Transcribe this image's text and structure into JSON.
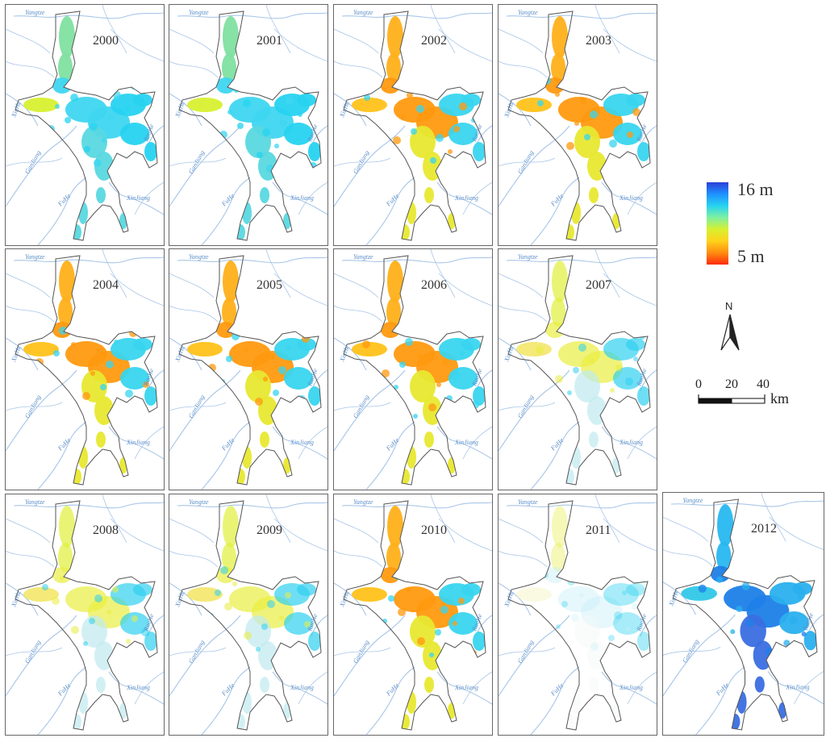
{
  "panels": [
    {
      "year": "2000",
      "cover": "mixed"
    },
    {
      "year": "2001",
      "cover": "mixed"
    },
    {
      "year": "2002",
      "cover": "shallow"
    },
    {
      "year": "2003",
      "cover": "shallow"
    },
    {
      "year": "2004",
      "cover": "shallow"
    },
    {
      "year": "2005",
      "cover": "shallow"
    },
    {
      "year": "2006",
      "cover": "shallow"
    },
    {
      "year": "2007",
      "cover": "sparse"
    },
    {
      "year": "2008",
      "cover": "sparse"
    },
    {
      "year": "2009",
      "cover": "sparse"
    },
    {
      "year": "2010",
      "cover": "shallow"
    },
    {
      "year": "2011",
      "cover": "very-sparse"
    },
    {
      "year": "2012",
      "cover": "deep"
    }
  ],
  "rivers": {
    "yangtze": "Yangtze",
    "xiuhe": "XiuHe",
    "raohe": "RaoHe",
    "ganjiang": "GanJiang",
    "fuhe": "FuHe",
    "xinjiang": "XinJiang"
  },
  "legend": {
    "max_label": "16 m",
    "min_label": "5 m",
    "colors": [
      "#2b3fd8",
      "#1e90ff",
      "#27d3f0",
      "#7ef0a0",
      "#d8f030",
      "#ffd21a",
      "#ff8c10",
      "#ff2a0a"
    ]
  },
  "north_arrow": {
    "letter": "N"
  },
  "scale_bar": {
    "ticks": [
      "0",
      "20",
      "40"
    ],
    "unit": "km"
  },
  "colors": {
    "panel_border": "#666666",
    "river": "#a9c6e8",
    "lake_outline": "#555555"
  }
}
